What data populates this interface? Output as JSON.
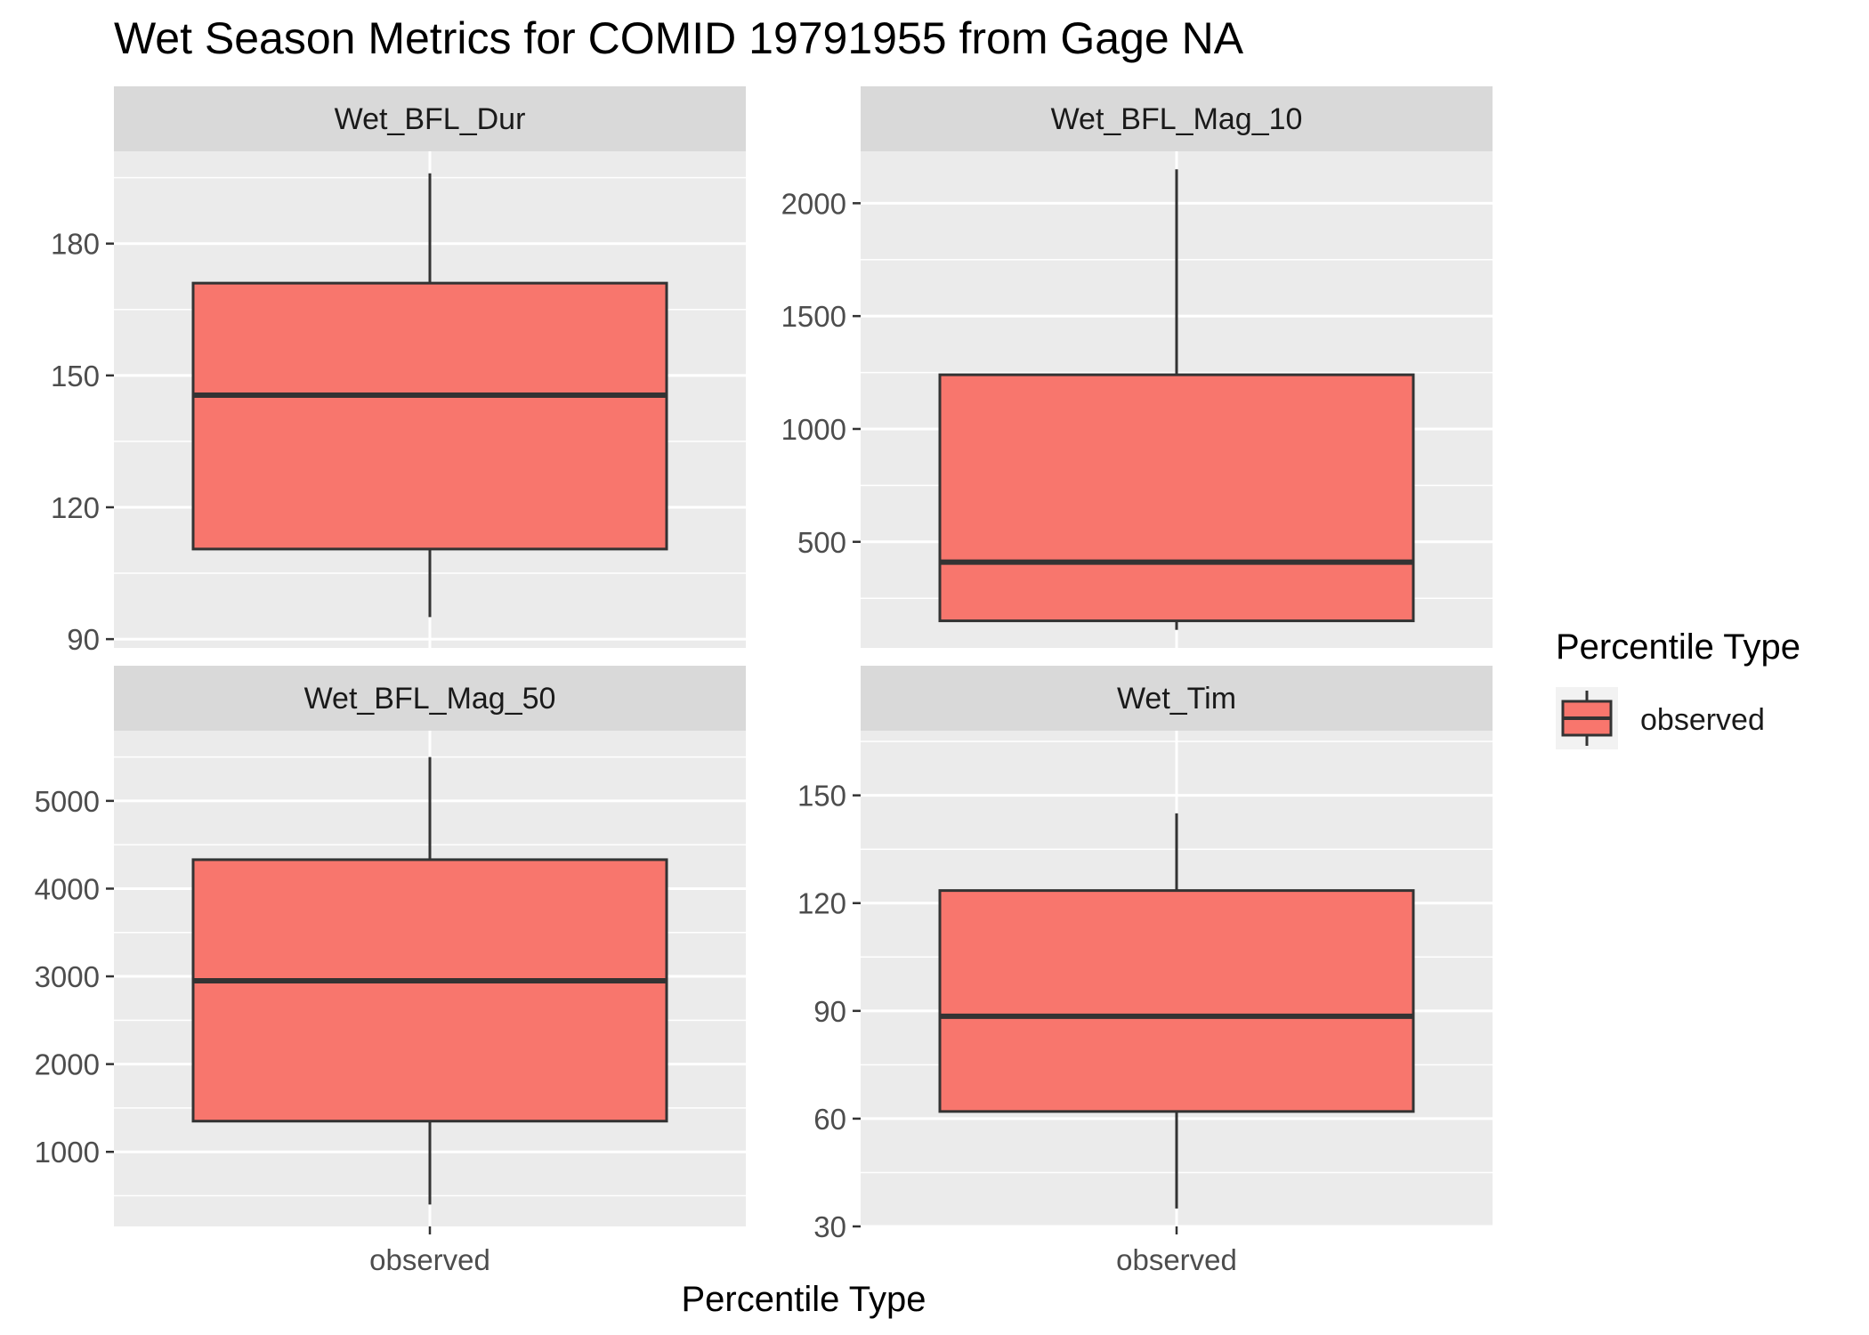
{
  "chart_data": {
    "type": "boxplot",
    "title": "Wet Season Metrics for COMID 19791955 from Gage NA",
    "xlabel": "Percentile Type",
    "ylabel": "",
    "category": "observed",
    "legend": {
      "title": "Percentile Type",
      "placement": "right",
      "entries": [
        {
          "label": "observed",
          "color": "#F8766D"
        }
      ]
    },
    "colors": {
      "fill": "#F8766D",
      "outline": "#333333",
      "panel_bg": "#EBEBEB",
      "strip_bg": "#D9D9D9",
      "grid": "#FFFFFF"
    },
    "panels": [
      {
        "strip": "Wet_BFL_Dur",
        "ylim": [
          88,
          201
        ],
        "yticks": [
          90,
          120,
          150,
          180
        ],
        "box": {
          "min": 95,
          "q1": 110.5,
          "median": 145.5,
          "q3": 171,
          "max": 196
        },
        "show_x_labels": false
      },
      {
        "strip": "Wet_BFL_Mag_10",
        "ylim": [
          30,
          2230
        ],
        "yticks": [
          500,
          1000,
          1500,
          2000
        ],
        "box": {
          "min": 110,
          "q1": 150,
          "median": 410,
          "q3": 1240,
          "max": 2150
        },
        "show_x_labels": false
      },
      {
        "strip": "Wet_BFL_Mag_50",
        "ylim": [
          150,
          5800
        ],
        "yticks": [
          1000,
          2000,
          3000,
          4000,
          5000
        ],
        "box": {
          "min": 400,
          "q1": 1350,
          "median": 2950,
          "q3": 4330,
          "max": 5500
        },
        "show_x_labels": true
      },
      {
        "strip": "Wet_Tim",
        "ylim": [
          30,
          168
        ],
        "yticks": [
          30,
          60,
          90,
          120,
          150
        ],
        "box": {
          "min": 35,
          "q1": 62,
          "median": 88.5,
          "q3": 123.5,
          "max": 145
        },
        "show_x_labels": true
      }
    ]
  }
}
